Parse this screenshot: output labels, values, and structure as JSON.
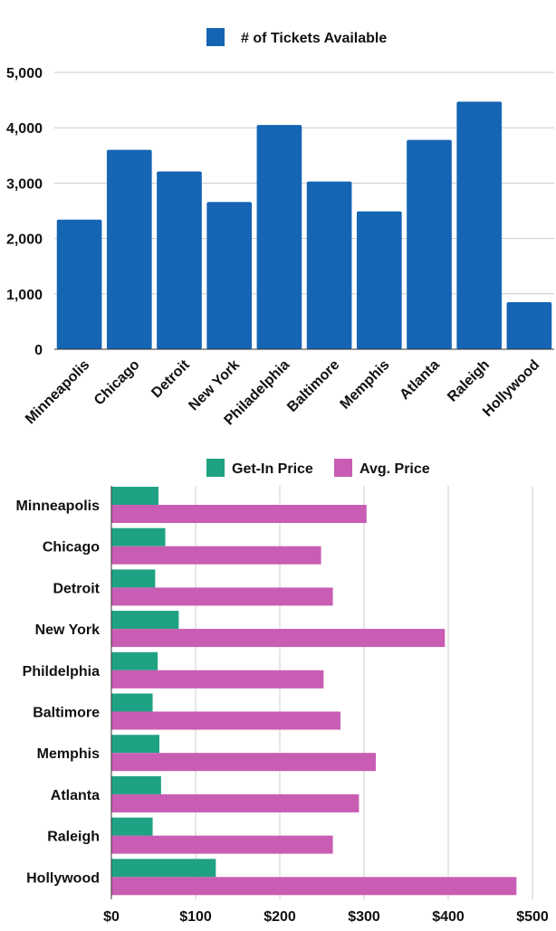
{
  "chart_data": [
    {
      "type": "bar",
      "orientation": "vertical",
      "categories": [
        "Minneapolis",
        "Chicago",
        "Detroit",
        "New York",
        "Philadelphia",
        "Baltimore",
        "Memphis",
        "Atlanta",
        "Raleigh",
        "Hollywood"
      ],
      "series": [
        {
          "name": "# of Tickets Available",
          "color": "#1565b4",
          "values": [
            2340,
            3600,
            3210,
            2660,
            4050,
            3030,
            2490,
            3780,
            4470,
            850
          ]
        }
      ],
      "ylim": [
        0,
        5000
      ],
      "yticks": [
        "0",
        "1,000",
        "2,000",
        "3,000",
        "4,000",
        "5,000"
      ],
      "ytick_values": [
        0,
        1000,
        2000,
        3000,
        4000,
        5000
      ],
      "legend_position": "top-center",
      "grid": true
    },
    {
      "type": "bar",
      "orientation": "horizontal",
      "categories": [
        "Minneapolis",
        "Chicago",
        "Detroit",
        "New York",
        "Phildelphia",
        "Baltimore",
        "Memphis",
        "Atlanta",
        "Raleigh",
        "Hollywood"
      ],
      "series": [
        {
          "name": "Get-In Price",
          "color": "#1fa283",
          "values": [
            56,
            64,
            52,
            80,
            55,
            49,
            57,
            59,
            49,
            124
          ]
        },
        {
          "name": "Avg. Price",
          "color": "#c85db3",
          "values": [
            303,
            249,
            263,
            396,
            252,
            272,
            314,
            294,
            263,
            481
          ]
        }
      ],
      "xlim": [
        0,
        500
      ],
      "xticks": [
        "$0",
        "$100",
        "$200",
        "$300",
        "$400",
        "$500"
      ],
      "xtick_values": [
        0,
        100,
        200,
        300,
        400,
        500
      ],
      "legend_position": "top-center",
      "grid": true
    }
  ]
}
